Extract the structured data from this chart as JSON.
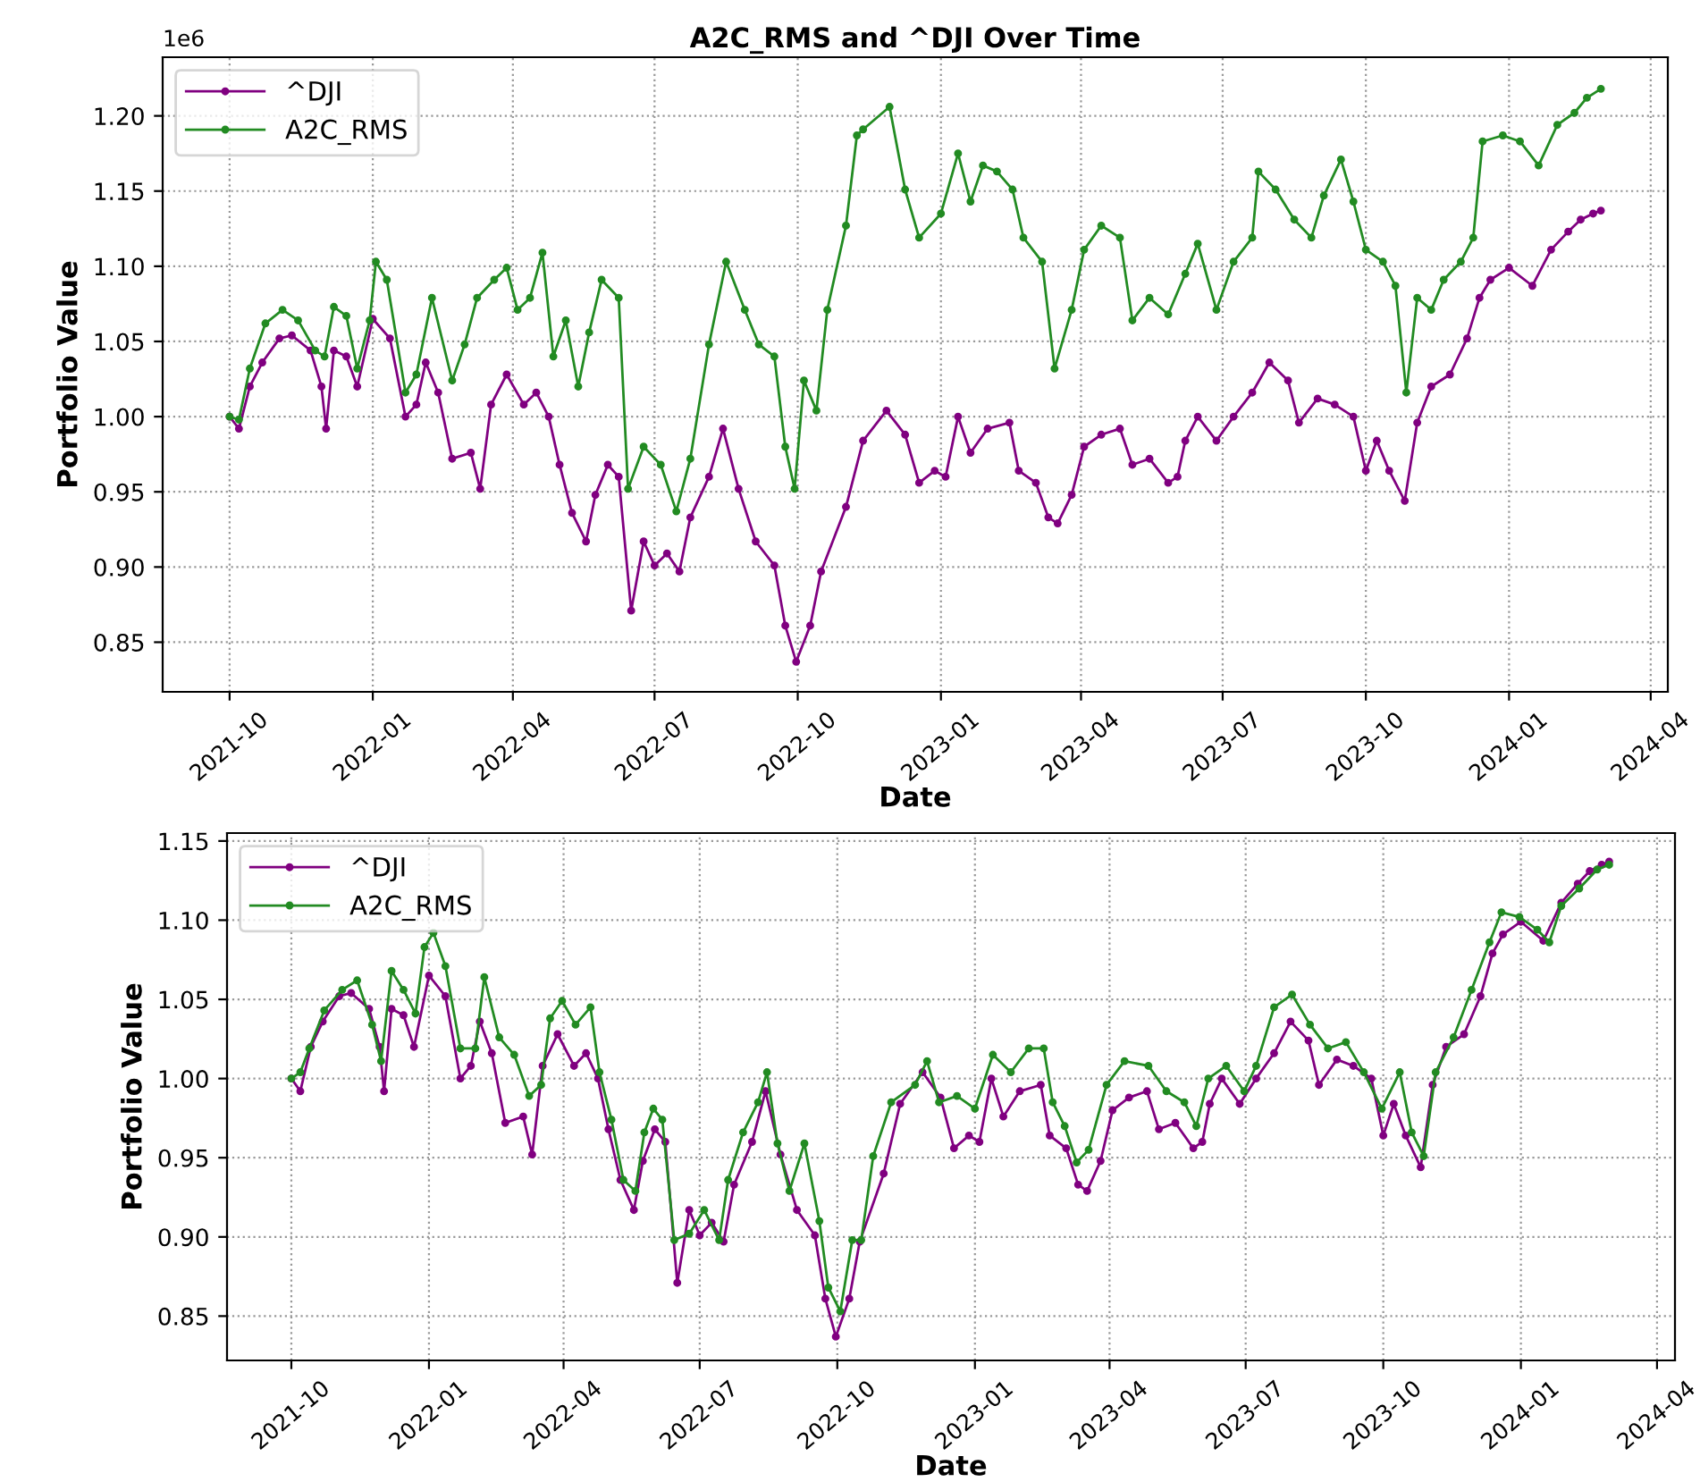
{
  "chart_data": [
    {
      "type": "line",
      "title": "A2C_RMS and ^DJI Over Time",
      "xlabel": "Date",
      "ylabel": "Portfolio Value",
      "annotations": [
        "1e6"
      ],
      "marker": "circle",
      "grid": true,
      "legend": "top left",
      "xlim": [
        "2021-08-19",
        "2024-04-12"
      ],
      "xticks": [
        "2021-10",
        "2022-01",
        "2022-04",
        "2022-07",
        "2022-10",
        "2023-01",
        "2023-04",
        "2023-07",
        "2023-10",
        "2024-01",
        "2024-04"
      ],
      "ylim": [
        0.817,
        1.239
      ],
      "yticks": [
        {
          "value": 0.85,
          "label": "0.85"
        },
        {
          "value": 0.9,
          "label": "0.90"
        },
        {
          "value": 0.95,
          "label": "0.95"
        },
        {
          "value": 1.0,
          "label": "1.00"
        },
        {
          "value": 1.05,
          "label": "1.05"
        },
        {
          "value": 1.1,
          "label": "1.10"
        },
        {
          "value": 1.15,
          "label": "1.15"
        },
        {
          "value": 1.2,
          "label": "1.20"
        }
      ],
      "series": [
        {
          "name": "^DJI",
          "color": "#800080",
          "x": [
            "2021-10-01",
            "2021-10-07",
            "2021-10-14",
            "2021-10-22",
            "2021-11-02",
            "2021-11-10",
            "2021-11-22",
            "2021-11-29",
            "2021-12-02",
            "2021-12-07",
            "2021-12-15",
            "2021-12-22",
            "2022-01-01",
            "2022-01-12",
            "2022-01-22",
            "2022-01-29",
            "2022-02-04",
            "2022-02-12",
            "2022-02-21",
            "2022-03-05",
            "2022-03-11",
            "2022-03-18",
            "2022-03-28",
            "2022-04-08",
            "2022-04-16",
            "2022-04-24",
            "2022-05-01",
            "2022-05-09",
            "2022-05-18",
            "2022-05-24",
            "2022-06-01",
            "2022-06-08",
            "2022-06-16",
            "2022-06-24",
            "2022-07-01",
            "2022-07-09",
            "2022-07-17",
            "2022-07-24",
            "2022-08-05",
            "2022-08-14",
            "2022-08-24",
            "2022-09-04",
            "2022-09-16",
            "2022-09-23",
            "2022-09-30",
            "2022-10-09",
            "2022-10-16",
            "2022-11-01",
            "2022-11-12",
            "2022-11-27",
            "2022-12-09",
            "2022-12-18",
            "2022-12-28",
            "2023-01-04",
            "2023-01-12",
            "2023-01-20",
            "2023-01-31",
            "2023-02-14",
            "2023-02-20",
            "2023-03-03",
            "2023-03-11",
            "2023-03-17",
            "2023-03-26",
            "2023-04-03",
            "2023-04-14",
            "2023-04-26",
            "2023-05-04",
            "2023-05-15",
            "2023-05-27",
            "2023-06-02",
            "2023-06-07",
            "2023-06-15",
            "2023-06-27",
            "2023-07-08",
            "2023-07-20",
            "2023-07-31",
            "2023-08-12",
            "2023-08-19",
            "2023-08-31",
            "2023-09-11",
            "2023-09-23",
            "2023-10-01",
            "2023-10-08",
            "2023-10-16",
            "2023-10-26",
            "2023-11-03",
            "2023-11-12",
            "2023-11-24",
            "2023-12-05",
            "2023-12-13",
            "2023-12-20",
            "2024-01-01",
            "2024-01-16",
            "2024-01-28",
            "2024-02-08",
            "2024-02-16",
            "2024-02-24",
            "2024-02-29"
          ],
          "values": [
            1.0,
            0.992,
            1.02,
            1.036,
            1.052,
            1.054,
            1.044,
            1.02,
            0.992,
            1.044,
            1.04,
            1.02,
            1.065,
            1.052,
            1.0,
            1.008,
            1.036,
            1.016,
            0.972,
            0.976,
            0.952,
            1.008,
            1.028,
            1.008,
            1.016,
            1.0,
            0.968,
            0.936,
            0.917,
            0.948,
            0.968,
            0.96,
            0.871,
            0.917,
            0.901,
            0.909,
            0.897,
            0.933,
            0.96,
            0.992,
            0.952,
            0.917,
            0.901,
            0.861,
            0.837,
            0.861,
            0.897,
            0.94,
            0.984,
            1.004,
            0.988,
            0.956,
            0.964,
            0.96,
            1.0,
            0.976,
            0.992,
            0.996,
            0.964,
            0.956,
            0.933,
            0.929,
            0.948,
            0.98,
            0.988,
            0.992,
            0.968,
            0.972,
            0.956,
            0.96,
            0.984,
            1.0,
            0.984,
            1.0,
            1.016,
            1.036,
            1.024,
            0.996,
            1.012,
            1.008,
            1.0,
            0.964,
            0.984,
            0.964,
            0.944,
            0.996,
            1.02,
            1.028,
            1.052,
            1.079,
            1.091,
            1.099,
            1.087,
            1.111,
            1.123,
            1.131,
            1.135,
            1.137
          ]
        },
        {
          "name": "A2C_RMS",
          "color": "#228b22",
          "x": [
            "2021-10-01",
            "2021-10-07",
            "2021-10-14",
            "2021-10-24",
            "2021-11-04",
            "2021-11-14",
            "2021-11-25",
            "2021-12-01",
            "2021-12-07",
            "2021-12-15",
            "2021-12-22",
            "2021-12-30",
            "2022-01-03",
            "2022-01-10",
            "2022-01-22",
            "2022-01-29",
            "2022-02-08",
            "2022-02-21",
            "2022-03-01",
            "2022-03-09",
            "2022-03-20",
            "2022-03-28",
            "2022-04-04",
            "2022-04-12",
            "2022-04-20",
            "2022-04-27",
            "2022-05-05",
            "2022-05-13",
            "2022-05-20",
            "2022-05-28",
            "2022-06-08",
            "2022-06-14",
            "2022-06-24",
            "2022-07-05",
            "2022-07-15",
            "2022-07-24",
            "2022-08-05",
            "2022-08-16",
            "2022-08-28",
            "2022-09-06",
            "2022-09-16",
            "2022-09-23",
            "2022-09-29",
            "2022-10-05",
            "2022-10-13",
            "2022-10-20",
            "2022-11-01",
            "2022-11-08",
            "2022-11-12",
            "2022-11-29",
            "2022-12-09",
            "2022-12-18",
            "2023-01-01",
            "2023-01-12",
            "2023-01-20",
            "2023-01-28",
            "2023-02-06",
            "2023-02-16",
            "2023-02-23",
            "2023-03-07",
            "2023-03-15",
            "2023-03-26",
            "2023-04-03",
            "2023-04-14",
            "2023-04-26",
            "2023-05-04",
            "2023-05-15",
            "2023-05-27",
            "2023-06-07",
            "2023-06-15",
            "2023-06-27",
            "2023-07-08",
            "2023-07-20",
            "2023-07-24",
            "2023-08-04",
            "2023-08-16",
            "2023-08-27",
            "2023-09-04",
            "2023-09-15",
            "2023-09-23",
            "2023-10-01",
            "2023-10-12",
            "2023-10-20",
            "2023-10-27",
            "2023-11-03",
            "2023-11-12",
            "2023-11-20",
            "2023-12-01",
            "2023-12-09",
            "2023-12-15",
            "2023-12-28",
            "2024-01-08",
            "2024-01-20",
            "2024-02-01",
            "2024-02-12",
            "2024-02-20",
            "2024-02-29"
          ],
          "values": [
            1.0,
            0.998,
            1.032,
            1.062,
            1.071,
            1.064,
            1.044,
            1.04,
            1.073,
            1.067,
            1.032,
            1.064,
            1.103,
            1.091,
            1.016,
            1.028,
            1.079,
            1.024,
            1.048,
            1.079,
            1.091,
            1.099,
            1.071,
            1.079,
            1.109,
            1.04,
            1.064,
            1.02,
            1.056,
            1.091,
            1.079,
            0.952,
            0.98,
            0.968,
            0.937,
            0.972,
            1.048,
            1.103,
            1.071,
            1.048,
            1.04,
            0.98,
            0.952,
            1.024,
            1.004,
            1.071,
            1.127,
            1.187,
            1.191,
            1.206,
            1.151,
            1.119,
            1.135,
            1.175,
            1.143,
            1.167,
            1.163,
            1.151,
            1.119,
            1.103,
            1.032,
            1.071,
            1.111,
            1.127,
            1.119,
            1.064,
            1.079,
            1.068,
            1.095,
            1.115,
            1.071,
            1.103,
            1.119,
            1.163,
            1.151,
            1.131,
            1.119,
            1.147,
            1.171,
            1.143,
            1.111,
            1.103,
            1.087,
            1.016,
            1.079,
            1.071,
            1.091,
            1.103,
            1.119,
            1.183,
            1.187,
            1.183,
            1.167,
            1.194,
            1.202,
            1.212,
            1.218
          ]
        }
      ]
    },
    {
      "type": "line",
      "xlabel": "Date",
      "ylabel": "Portfolio Value",
      "marker": "circle",
      "grid": true,
      "legend": "top left",
      "xlim": [
        "2021-08-19",
        "2024-04-13"
      ],
      "xticks": [
        "2021-10",
        "2022-01",
        "2022-04",
        "2022-07",
        "2022-10",
        "2023-01",
        "2023-04",
        "2023-07",
        "2023-10",
        "2024-01",
        "2024-04"
      ],
      "ylim": [
        0.822,
        1.155
      ],
      "yticks": [
        {
          "value": 0.85,
          "label": "0.85"
        },
        {
          "value": 0.9,
          "label": "0.90"
        },
        {
          "value": 0.95,
          "label": "0.95"
        },
        {
          "value": 1.0,
          "label": "1.00"
        },
        {
          "value": 1.05,
          "label": "1.05"
        },
        {
          "value": 1.1,
          "label": "1.10"
        },
        {
          "value": 1.15,
          "label": "1.15"
        }
      ],
      "series": [
        {
          "name": "^DJI",
          "color": "#800080",
          "x": [
            "2021-10-01",
            "2021-10-07",
            "2021-10-14",
            "2021-10-22",
            "2021-11-02",
            "2021-11-10",
            "2021-11-22",
            "2021-11-29",
            "2021-12-02",
            "2021-12-07",
            "2021-12-15",
            "2021-12-22",
            "2022-01-01",
            "2022-01-12",
            "2022-01-22",
            "2022-01-29",
            "2022-02-04",
            "2022-02-12",
            "2022-02-21",
            "2022-03-05",
            "2022-03-11",
            "2022-03-18",
            "2022-03-28",
            "2022-04-08",
            "2022-04-16",
            "2022-04-24",
            "2022-05-01",
            "2022-05-09",
            "2022-05-18",
            "2022-05-24",
            "2022-06-01",
            "2022-06-08",
            "2022-06-16",
            "2022-06-24",
            "2022-07-01",
            "2022-07-09",
            "2022-07-17",
            "2022-07-24",
            "2022-08-05",
            "2022-08-14",
            "2022-08-24",
            "2022-09-04",
            "2022-09-16",
            "2022-09-23",
            "2022-09-30",
            "2022-10-09",
            "2022-10-16",
            "2022-11-01",
            "2022-11-12",
            "2022-11-27",
            "2022-12-09",
            "2022-12-18",
            "2022-12-28",
            "2023-01-04",
            "2023-01-12",
            "2023-01-20",
            "2023-01-31",
            "2023-02-14",
            "2023-02-20",
            "2023-03-03",
            "2023-03-11",
            "2023-03-17",
            "2023-03-26",
            "2023-04-03",
            "2023-04-14",
            "2023-04-26",
            "2023-05-04",
            "2023-05-15",
            "2023-05-27",
            "2023-06-02",
            "2023-06-07",
            "2023-06-15",
            "2023-06-27",
            "2023-07-08",
            "2023-07-20",
            "2023-07-31",
            "2023-08-12",
            "2023-08-19",
            "2023-08-31",
            "2023-09-11",
            "2023-09-23",
            "2023-10-01",
            "2023-10-08",
            "2023-10-16",
            "2023-10-26",
            "2023-11-03",
            "2023-11-12",
            "2023-11-24",
            "2023-12-05",
            "2023-12-13",
            "2023-12-20",
            "2024-01-01",
            "2024-01-16",
            "2024-01-28",
            "2024-02-08",
            "2024-02-16",
            "2024-02-24",
            "2024-02-29"
          ],
          "values": [
            1.0,
            0.992,
            1.02,
            1.036,
            1.052,
            1.054,
            1.044,
            1.02,
            0.992,
            1.044,
            1.04,
            1.02,
            1.065,
            1.052,
            1.0,
            1.008,
            1.036,
            1.016,
            0.972,
            0.976,
            0.952,
            1.008,
            1.028,
            1.008,
            1.016,
            1.0,
            0.968,
            0.936,
            0.917,
            0.948,
            0.968,
            0.96,
            0.871,
            0.917,
            0.901,
            0.909,
            0.897,
            0.933,
            0.96,
            0.992,
            0.952,
            0.917,
            0.901,
            0.861,
            0.837,
            0.861,
            0.897,
            0.94,
            0.984,
            1.004,
            0.988,
            0.956,
            0.964,
            0.96,
            1.0,
            0.976,
            0.992,
            0.996,
            0.964,
            0.956,
            0.933,
            0.929,
            0.948,
            0.98,
            0.988,
            0.992,
            0.968,
            0.972,
            0.956,
            0.96,
            0.984,
            1.0,
            0.984,
            1.0,
            1.016,
            1.036,
            1.024,
            0.996,
            1.012,
            1.008,
            1.0,
            0.964,
            0.984,
            0.964,
            0.944,
            0.996,
            1.02,
            1.028,
            1.052,
            1.079,
            1.091,
            1.099,
            1.087,
            1.111,
            1.123,
            1.131,
            1.135,
            1.137
          ]
        },
        {
          "name": "A2C_RMS",
          "color": "#228b22",
          "x": [
            "2021-10-01",
            "2021-10-07",
            "2021-10-13",
            "2021-10-23",
            "2021-11-04",
            "2021-11-14",
            "2021-11-24",
            "2021-11-30",
            "2021-12-07",
            "2021-12-15",
            "2021-12-23",
            "2021-12-29",
            "2022-01-04",
            "2022-01-12",
            "2022-01-22",
            "2022-02-01",
            "2022-02-07",
            "2022-02-17",
            "2022-02-27",
            "2022-03-09",
            "2022-03-17",
            "2022-03-23",
            "2022-03-31",
            "2022-04-09",
            "2022-04-19",
            "2022-04-25",
            "2022-05-03",
            "2022-05-11",
            "2022-05-19",
            "2022-05-25",
            "2022-05-31",
            "2022-06-06",
            "2022-06-14",
            "2022-06-24",
            "2022-07-04",
            "2022-07-14",
            "2022-07-20",
            "2022-07-30",
            "2022-08-09",
            "2022-08-15",
            "2022-08-22",
            "2022-08-30",
            "2022-09-09",
            "2022-09-19",
            "2022-09-25",
            "2022-10-03",
            "2022-10-11",
            "2022-10-17",
            "2022-10-25",
            "2022-11-06",
            "2022-11-22",
            "2022-11-30",
            "2022-12-08",
            "2022-12-20",
            "2023-01-01",
            "2023-01-13",
            "2023-01-25",
            "2023-02-06",
            "2023-02-16",
            "2023-02-22",
            "2023-03-02",
            "2023-03-10",
            "2023-03-18",
            "2023-03-30",
            "2023-04-11",
            "2023-04-27",
            "2023-05-09",
            "2023-05-21",
            "2023-05-29",
            "2023-06-06",
            "2023-06-18",
            "2023-06-30",
            "2023-07-08",
            "2023-07-20",
            "2023-08-01",
            "2023-08-13",
            "2023-08-25",
            "2023-09-06",
            "2023-09-18",
            "2023-09-30",
            "2023-10-12",
            "2023-10-20",
            "2023-10-28",
            "2023-11-05",
            "2023-11-17",
            "2023-11-29",
            "2023-12-11",
            "2023-12-19",
            "2023-12-31",
            "2024-01-12",
            "2024-01-20",
            "2024-01-28",
            "2024-02-09",
            "2024-02-21",
            "2024-02-29"
          ],
          "values": [
            1.0,
            1.004,
            1.019,
            1.043,
            1.056,
            1.062,
            1.034,
            1.011,
            1.068,
            1.056,
            1.041,
            1.083,
            1.092,
            1.071,
            1.019,
            1.019,
            1.064,
            1.026,
            1.015,
            0.989,
            0.996,
            1.038,
            1.049,
            1.034,
            1.045,
            1.004,
            0.974,
            0.936,
            0.929,
            0.966,
            0.981,
            0.974,
            0.898,
            0.902,
            0.917,
            0.898,
            0.936,
            0.966,
            0.985,
            1.004,
            0.959,
            0.929,
            0.959,
            0.91,
            0.868,
            0.853,
            0.898,
            0.898,
            0.951,
            0.985,
            0.996,
            1.011,
            0.985,
            0.989,
            0.981,
            1.015,
            1.004,
            1.019,
            1.019,
            0.985,
            0.97,
            0.947,
            0.955,
            0.996,
            1.011,
            1.008,
            0.992,
            0.985,
            0.97,
            1.0,
            1.008,
            0.992,
            1.008,
            1.045,
            1.053,
            1.034,
            1.019,
            1.023,
            1.004,
            0.981,
            1.004,
            0.966,
            0.951,
            1.004,
            1.026,
            1.056,
            1.086,
            1.105,
            1.102,
            1.094,
            1.086,
            1.109,
            1.12,
            1.132,
            1.135
          ]
        }
      ]
    }
  ]
}
